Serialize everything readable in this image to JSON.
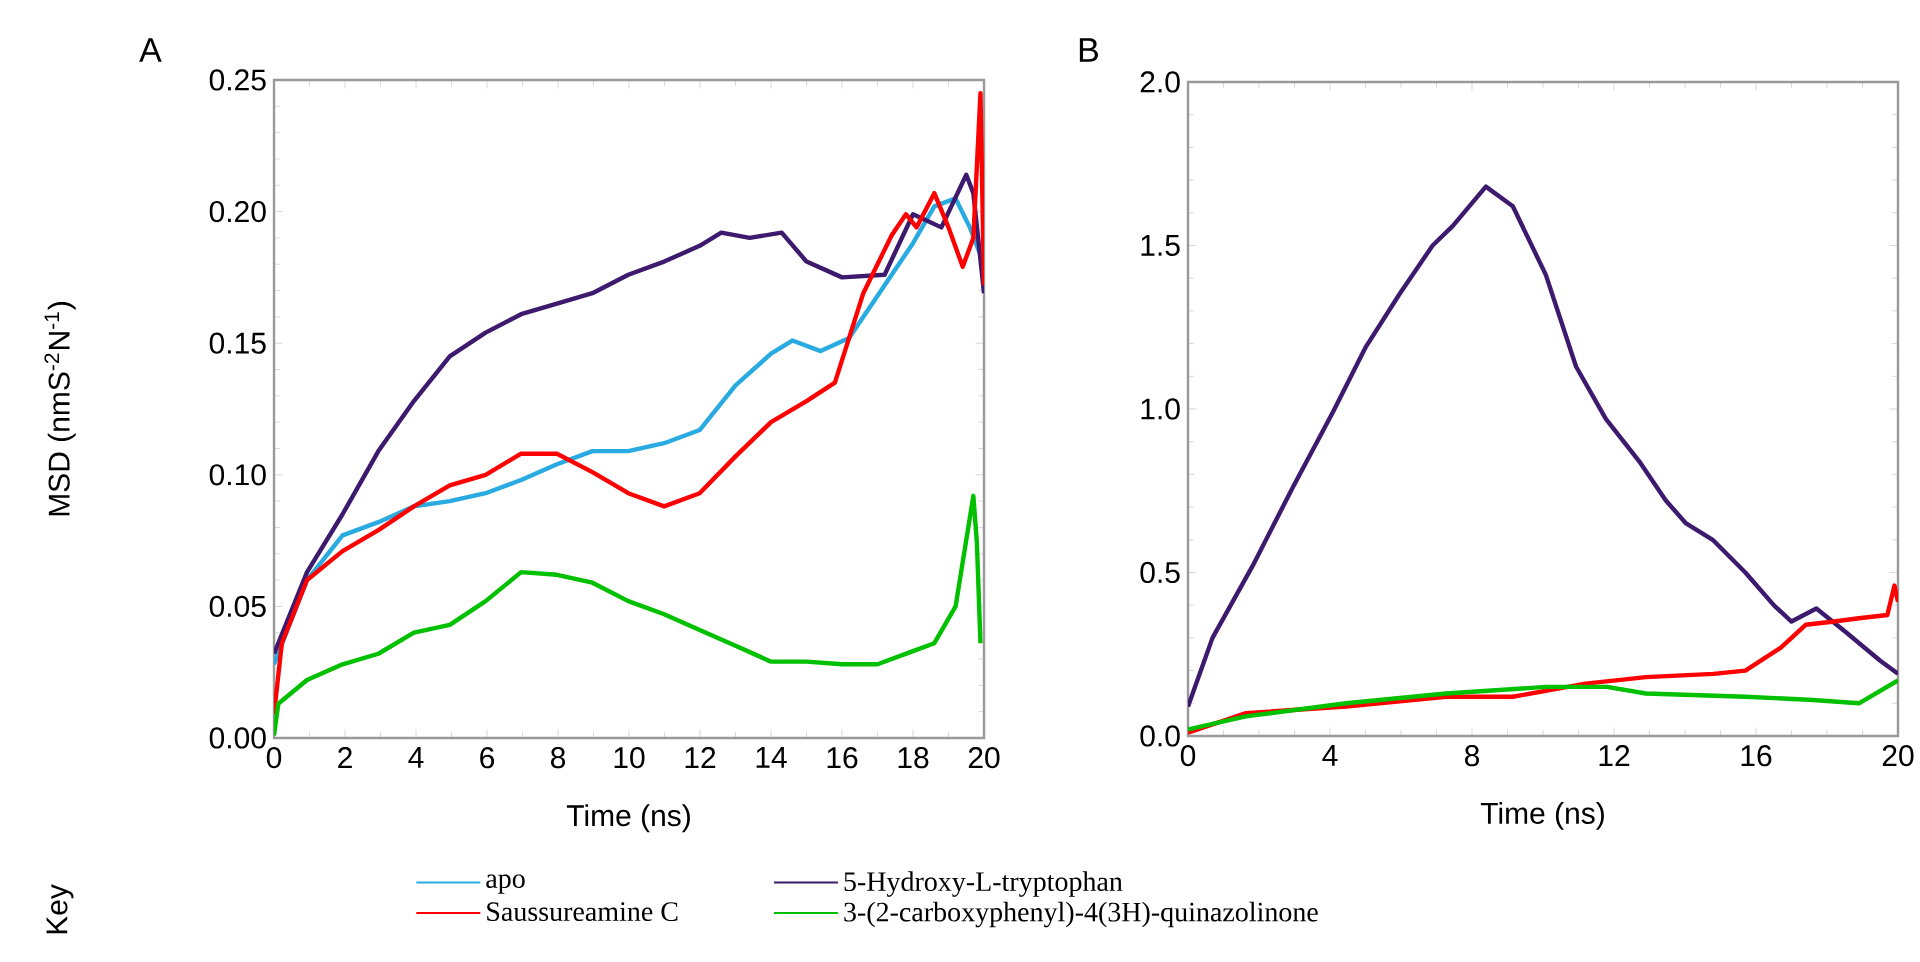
{
  "chart_data": [
    {
      "type": "line",
      "title": "A",
      "xlabel": "Time (ns)",
      "ylabel": "MSD (nmS$^{-2}$N$^{-1}$)",
      "annotations": [
        "Key"
      ],
      "legend": "bottom",
      "grid": false,
      "xlim": [
        0,
        20
      ],
      "ylim": [
        0,
        0.25
      ],
      "xticks": [
        0,
        2,
        4,
        6,
        8,
        10,
        12,
        14,
        16,
        18,
        20
      ],
      "yticks": [
        {
          "value": 0,
          "label": "0.00"
        },
        {
          "value": 0.05,
          "label": "0.05"
        },
        {
          "value": 0.1,
          "label": "0.10"
        },
        {
          "value": 0.15,
          "label": "0.15"
        },
        {
          "value": 0.2,
          "label": "0.20"
        },
        {
          "value": 0.25,
          "label": "0.25"
        }
      ],
      "series": [
        {
          "name": "apo",
          "color": "#29abe2",
          "x": [
            0,
            0.93,
            1.93,
            2.94,
            3.94,
            4.95,
            5.96,
            6.96,
            7.97,
            8.97,
            9.98,
            10.99,
            11.99,
            13.0,
            14.0,
            14.6,
            15.4,
            16.2,
            17.2,
            18.0,
            18.6,
            19.2,
            19.6,
            20
          ],
          "values": [
            0.028,
            0.06,
            0.077,
            0.082,
            0.088,
            0.09,
            0.093,
            0.098,
            0.104,
            0.109,
            0.109,
            0.112,
            0.117,
            0.134,
            0.146,
            0.151,
            0.147,
            0.152,
            0.172,
            0.188,
            0.202,
            0.205,
            0.194,
            0.18
          ]
        },
        {
          "name": "5-Hydroxy-L-tryptophan",
          "color": "#3d1a6e",
          "x": [
            0,
            0.93,
            1.93,
            2.94,
            3.94,
            4.95,
            5.96,
            6.96,
            7.97,
            8.97,
            9.98,
            10.99,
            11.99,
            12.6,
            13.4,
            14.3,
            15.0,
            16.0,
            17.2,
            18.0,
            18.8,
            19.5,
            19.7,
            20
          ],
          "values": [
            0.032,
            0.063,
            0.085,
            0.109,
            0.128,
            0.145,
            0.154,
            0.161,
            0.165,
            0.169,
            0.176,
            0.181,
            0.187,
            0.192,
            0.19,
            0.192,
            0.181,
            0.175,
            0.176,
            0.199,
            0.194,
            0.214,
            0.207,
            0.169
          ]
        },
        {
          "name": "Saussureamine C",
          "color": "#ff0000",
          "x": [
            0,
            0.22,
            0.93,
            1.93,
            2.94,
            3.94,
            4.95,
            5.96,
            6.96,
            7.97,
            8.97,
            9.98,
            10.99,
            11.99,
            13.0,
            14.0,
            15.0,
            15.8,
            16.6,
            17.4,
            17.8,
            18.1,
            18.6,
            19.0,
            19.4,
            19.7,
            19.9,
            20
          ],
          "values": [
            0.009,
            0.036,
            0.06,
            0.071,
            0.079,
            0.088,
            0.096,
            0.1,
            0.108,
            0.108,
            0.101,
            0.093,
            0.088,
            0.093,
            0.107,
            0.12,
            0.128,
            0.135,
            0.169,
            0.191,
            0.199,
            0.194,
            0.207,
            0.194,
            0.179,
            0.19,
            0.245,
            0.172
          ]
        },
        {
          "name": "3-(2-carboxyphenyl)-4(3H)-quinazolinone",
          "color": "#00c000",
          "x": [
            0,
            0.12,
            0.93,
            1.93,
            2.94,
            3.94,
            4.95,
            5.96,
            6.96,
            7.97,
            8.97,
            9.98,
            10.99,
            11.99,
            13.0,
            14.0,
            15.0,
            16.0,
            17.0,
            18.0,
            18.6,
            19.2,
            19.7,
            19.8,
            19.9
          ],
          "values": [
            0.001,
            0.013,
            0.022,
            0.028,
            0.032,
            0.04,
            0.043,
            0.052,
            0.063,
            0.062,
            0.059,
            0.052,
            0.047,
            0.041,
            0.035,
            0.029,
            0.029,
            0.028,
            0.028,
            0.033,
            0.036,
            0.05,
            0.092,
            0.074,
            0.036
          ]
        }
      ]
    },
    {
      "type": "line",
      "title": "B",
      "xlabel": "Time (ns)",
      "grid": false,
      "xlim": [
        0,
        20
      ],
      "ylim": [
        0,
        2.0
      ],
      "xticks": [
        0,
        4,
        8,
        12,
        16,
        20
      ],
      "yticks": [
        {
          "value": 0,
          "label": "0.0"
        },
        {
          "value": 0.5,
          "label": "0.5"
        },
        {
          "value": 1.0,
          "label": "1.0"
        },
        {
          "value": 1.5,
          "label": "1.5"
        },
        {
          "value": 2.0,
          "label": "2.0"
        }
      ],
      "series": [
        {
          "color": "#3d1a6e",
          "x": [
            0,
            0.69,
            1.82,
            2.95,
            4.08,
            5.01,
            5.95,
            6.89,
            7.46,
            8.39,
            9.15,
            10.08,
            10.93,
            11.77,
            12.71,
            13.46,
            14.03,
            14.78,
            15.7,
            16.5,
            17.0,
            17.7,
            18.5,
            19.5,
            20
          ],
          "values": [
            0.09,
            0.3,
            0.52,
            0.76,
            0.99,
            1.19,
            1.35,
            1.5,
            1.56,
            1.68,
            1.62,
            1.41,
            1.13,
            0.97,
            0.84,
            0.72,
            0.65,
            0.6,
            0.5,
            0.4,
            0.35,
            0.39,
            0.32,
            0.23,
            0.19
          ]
        },
        {
          "color": "#ff0000",
          "x": [
            0,
            1.63,
            4.45,
            7.27,
            9.15,
            11.2,
            12.9,
            14.8,
            15.7,
            16.7,
            17.4,
            18.2,
            18.9,
            19.7,
            19.9,
            20
          ],
          "values": [
            0.01,
            0.07,
            0.09,
            0.12,
            0.12,
            0.16,
            0.18,
            0.19,
            0.2,
            0.27,
            0.34,
            0.35,
            0.36,
            0.37,
            0.46,
            0.41
          ]
        },
        {
          "color": "#00c000",
          "x": [
            0,
            1.63,
            4.45,
            7.27,
            10.1,
            11.8,
            12.9,
            15.7,
            17.6,
            18.9,
            20
          ],
          "values": [
            0.02,
            0.06,
            0.1,
            0.13,
            0.15,
            0.15,
            0.13,
            0.12,
            0.11,
            0.1,
            0.17
          ]
        }
      ]
    }
  ]
}
